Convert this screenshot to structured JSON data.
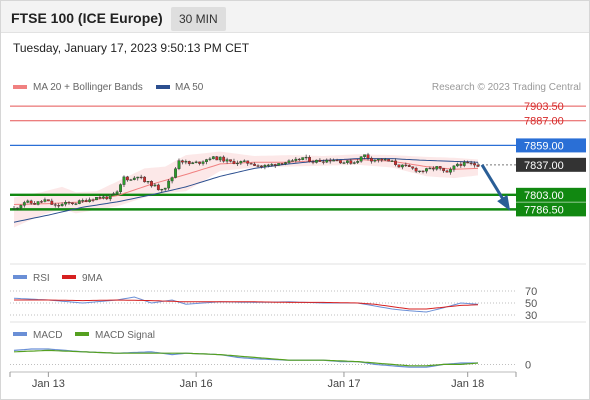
{
  "header": {
    "title": "FTSE 100 (ICE Europe)",
    "timeframe": "30 MIN"
  },
  "datetime": "Tuesday, January 17, 2023 9:50:13 PM CET",
  "credit": "Research © 2023 Trading Central",
  "colors": {
    "bollinger": "#f08080",
    "ma50": "#2c4f8f",
    "resistance_line": "#e55353",
    "pivot_blue": "#2a6fd6",
    "support_green": "#118811",
    "current_price": "#333333",
    "forecast_arrow": "#2a5e96",
    "rsi": "#6a8fd6",
    "rsi_9ma": "#d62020",
    "macd": "#6a8fd6",
    "macd_signal": "#55a020"
  },
  "chart_data": [
    {
      "type": "candlestick",
      "legend": [
        "MA 20 + Bollinger Bands",
        "MA 50"
      ],
      "x_tick_labels": [
        "Jan 13",
        "Jan 16",
        "Jan 17",
        "Jan 18"
      ],
      "ylim": [
        7745,
        7915
      ],
      "levels": [
        {
          "label": "7903.50",
          "value": 7903.5,
          "kind": "resistance"
        },
        {
          "label": "7887.00",
          "value": 7887.0,
          "kind": "resistance"
        },
        {
          "label": "7859.00",
          "value": 7859.0,
          "kind": "pivot"
        },
        {
          "label": "7837.00",
          "value": 7837.0,
          "kind": "current"
        },
        {
          "label": "7803.00",
          "value": 7803.0,
          "kind": "support"
        },
        {
          "label": "7786.50",
          "value": 7786.5,
          "kind": "support"
        }
      ],
      "forecast": {
        "from": 7837,
        "to": 7786.5
      },
      "close_anchors": [
        [
          0,
          7787
        ],
        [
          3,
          7795
        ],
        [
          6,
          7793
        ],
        [
          9,
          7797
        ],
        [
          12,
          7790
        ],
        [
          15,
          7793
        ],
        [
          18,
          7794
        ],
        [
          21,
          7797
        ],
        [
          24,
          7800
        ],
        [
          27,
          7800
        ],
        [
          30,
          7805
        ],
        [
          32,
          7823
        ],
        [
          34,
          7820
        ],
        [
          36,
          7825
        ],
        [
          38,
          7818
        ],
        [
          40,
          7815
        ],
        [
          42,
          7810
        ],
        [
          44,
          7812
        ],
        [
          46,
          7823
        ],
        [
          48,
          7843
        ],
        [
          51,
          7838
        ],
        [
          54,
          7840
        ],
        [
          57,
          7845
        ],
        [
          60,
          7844
        ],
        [
          63,
          7840
        ],
        [
          66,
          7840
        ],
        [
          69,
          7839
        ],
        [
          72,
          7835
        ],
        [
          75,
          7837
        ],
        [
          78,
          7840
        ],
        [
          81,
          7840
        ],
        [
          84,
          7845
        ],
        [
          87,
          7841
        ],
        [
          90,
          7842
        ],
        [
          93,
          7843
        ],
        [
          96,
          7840
        ],
        [
          99,
          7840
        ],
        [
          102,
          7848
        ],
        [
          104,
          7843
        ],
        [
          107,
          7843
        ],
        [
          110,
          7840
        ],
        [
          112,
          7836
        ],
        [
          115,
          7834
        ],
        [
          118,
          7830
        ],
        [
          120,
          7831
        ],
        [
          123,
          7834
        ],
        [
          126,
          7827
        ],
        [
          129,
          7838
        ],
        [
          132,
          7838
        ],
        [
          135,
          7837
        ]
      ],
      "ma20": [
        [
          0,
          7792
        ],
        [
          10,
          7793
        ],
        [
          20,
          7795
        ],
        [
          30,
          7802
        ],
        [
          40,
          7815
        ],
        [
          50,
          7826
        ],
        [
          60,
          7838
        ],
        [
          70,
          7840
        ],
        [
          80,
          7840
        ],
        [
          90,
          7842
        ],
        [
          100,
          7843
        ],
        [
          110,
          7841
        ],
        [
          120,
          7835
        ],
        [
          128,
          7832
        ],
        [
          135,
          7833
        ]
      ],
      "bb_upper": [
        [
          0,
          7800
        ],
        [
          8,
          7806
        ],
        [
          14,
          7812
        ],
        [
          18,
          7806
        ],
        [
          24,
          7807
        ],
        [
          30,
          7818
        ],
        [
          38,
          7833
        ],
        [
          44,
          7835
        ],
        [
          50,
          7848
        ],
        [
          60,
          7852
        ],
        [
          70,
          7847
        ],
        [
          80,
          7848
        ],
        [
          90,
          7847
        ],
        [
          100,
          7849
        ],
        [
          110,
          7848
        ],
        [
          120,
          7846
        ],
        [
          128,
          7845
        ],
        [
          135,
          7843
        ]
      ],
      "bb_lower": [
        [
          0,
          7766
        ],
        [
          8,
          7780
        ],
        [
          14,
          7787
        ],
        [
          18,
          7782
        ],
        [
          24,
          7786
        ],
        [
          30,
          7790
        ],
        [
          38,
          7800
        ],
        [
          44,
          7805
        ],
        [
          50,
          7807
        ],
        [
          60,
          7830
        ],
        [
          70,
          7834
        ],
        [
          80,
          7835
        ],
        [
          90,
          7836
        ],
        [
          100,
          7837
        ],
        [
          110,
          7834
        ],
        [
          120,
          7824
        ],
        [
          128,
          7822
        ],
        [
          135,
          7825
        ]
      ],
      "ma50": [
        [
          0,
          7772
        ],
        [
          10,
          7780
        ],
        [
          20,
          7789
        ],
        [
          30,
          7795
        ],
        [
          40,
          7803
        ],
        [
          50,
          7812
        ],
        [
          60,
          7824
        ],
        [
          70,
          7833
        ],
        [
          80,
          7838
        ],
        [
          90,
          7842
        ],
        [
          100,
          7844
        ],
        [
          110,
          7844
        ],
        [
          120,
          7842
        ],
        [
          135,
          7840
        ]
      ]
    },
    {
      "type": "line",
      "legend": [
        "RSI",
        "9MA"
      ],
      "ylim": [
        25,
        75
      ],
      "y_ticks": [
        {
          "value": 70,
          "label": "70"
        },
        {
          "value": 50,
          "label": "50"
        },
        {
          "value": 30,
          "label": "30"
        }
      ],
      "series": [
        {
          "name": "RSI",
          "points": [
            [
              0,
              58
            ],
            [
              10,
              55
            ],
            [
              20,
              50
            ],
            [
              30,
              55
            ],
            [
              35,
              60
            ],
            [
              40,
              50
            ],
            [
              46,
              55
            ],
            [
              50,
              48
            ],
            [
              60,
              52
            ],
            [
              70,
              51
            ],
            [
              80,
              52
            ],
            [
              90,
              50
            ],
            [
              100,
              50
            ],
            [
              105,
              45
            ],
            [
              110,
              40
            ],
            [
              115,
              37
            ],
            [
              120,
              35
            ],
            [
              125,
              42
            ],
            [
              130,
              50
            ],
            [
              135,
              48
            ]
          ]
        },
        {
          "name": "9MA",
          "points": [
            [
              0,
              55
            ],
            [
              10,
              55
            ],
            [
              20,
              54
            ],
            [
              30,
              55
            ],
            [
              40,
              54
            ],
            [
              50,
              52
            ],
            [
              60,
              52
            ],
            [
              70,
              52
            ],
            [
              80,
              51
            ],
            [
              90,
              51
            ],
            [
              100,
              50
            ],
            [
              105,
              48
            ],
            [
              110,
              44
            ],
            [
              115,
              40
            ],
            [
              120,
              40
            ],
            [
              125,
              43
            ],
            [
              130,
              46
            ],
            [
              135,
              47
            ]
          ]
        }
      ]
    },
    {
      "type": "line",
      "legend": [
        "MACD",
        "MACD Signal"
      ],
      "ylim": [
        -4,
        16
      ],
      "y_ticks": [
        {
          "value": 0,
          "label": "0"
        }
      ],
      "series": [
        {
          "name": "MACD",
          "points": [
            [
              0,
              10
            ],
            [
              5,
              11
            ],
            [
              10,
              11
            ],
            [
              20,
              9
            ],
            [
              30,
              8
            ],
            [
              40,
              9
            ],
            [
              46,
              7
            ],
            [
              50,
              8
            ],
            [
              60,
              7
            ],
            [
              65,
              5
            ],
            [
              70,
              4
            ],
            [
              80,
              3
            ],
            [
              90,
              3
            ],
            [
              95,
              2
            ],
            [
              100,
              2
            ],
            [
              105,
              0
            ],
            [
              110,
              -1
            ],
            [
              115,
              -2
            ],
            [
              120,
              -2
            ],
            [
              125,
              0
            ],
            [
              130,
              1
            ],
            [
              135,
              1
            ]
          ]
        },
        {
          "name": "MACD Signal",
          "points": [
            [
              0,
              9
            ],
            [
              10,
              10
            ],
            [
              20,
              9
            ],
            [
              30,
              8
            ],
            [
              40,
              8
            ],
            [
              50,
              8
            ],
            [
              60,
              7
            ],
            [
              70,
              5
            ],
            [
              80,
              3
            ],
            [
              90,
              3
            ],
            [
              100,
              2
            ],
            [
              105,
              1
            ],
            [
              110,
              0
            ],
            [
              115,
              -1
            ],
            [
              120,
              -1
            ],
            [
              125,
              0
            ],
            [
              130,
              0
            ],
            [
              135,
              1
            ]
          ]
        }
      ]
    }
  ]
}
